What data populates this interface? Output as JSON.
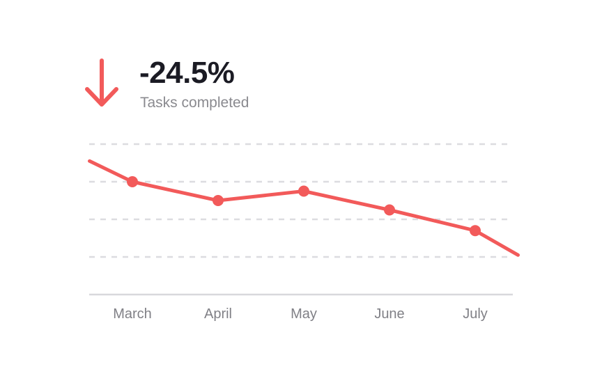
{
  "header": {
    "change_value": "-24.5%",
    "metric_label": "Tasks completed",
    "trend_icon": "arrow-down-icon"
  },
  "colors": {
    "accent": "#f25a5a",
    "value_text": "#1b1b24",
    "label_text": "#8a8a8f",
    "gridline": "#dcdce0",
    "baseline": "#d8d8dc"
  },
  "chart_data": {
    "type": "line",
    "title": "Tasks completed",
    "xlabel": "",
    "ylabel": "",
    "categories": [
      "March",
      "April",
      "May",
      "June",
      "July"
    ],
    "series": [
      {
        "name": "Tasks completed",
        "x": [
          -0.5,
          0,
          1,
          2,
          3,
          4,
          4.5
        ],
        "values": [
          3.55,
          3.0,
          2.5,
          2.75,
          2.25,
          1.7,
          1.05
        ],
        "marker_points": [
          0,
          1,
          2,
          3,
          4
        ]
      }
    ],
    "ylim": [
      0,
      4
    ],
    "gridlines": [
      1,
      2,
      3,
      4
    ],
    "grid": true,
    "legend": "none"
  }
}
